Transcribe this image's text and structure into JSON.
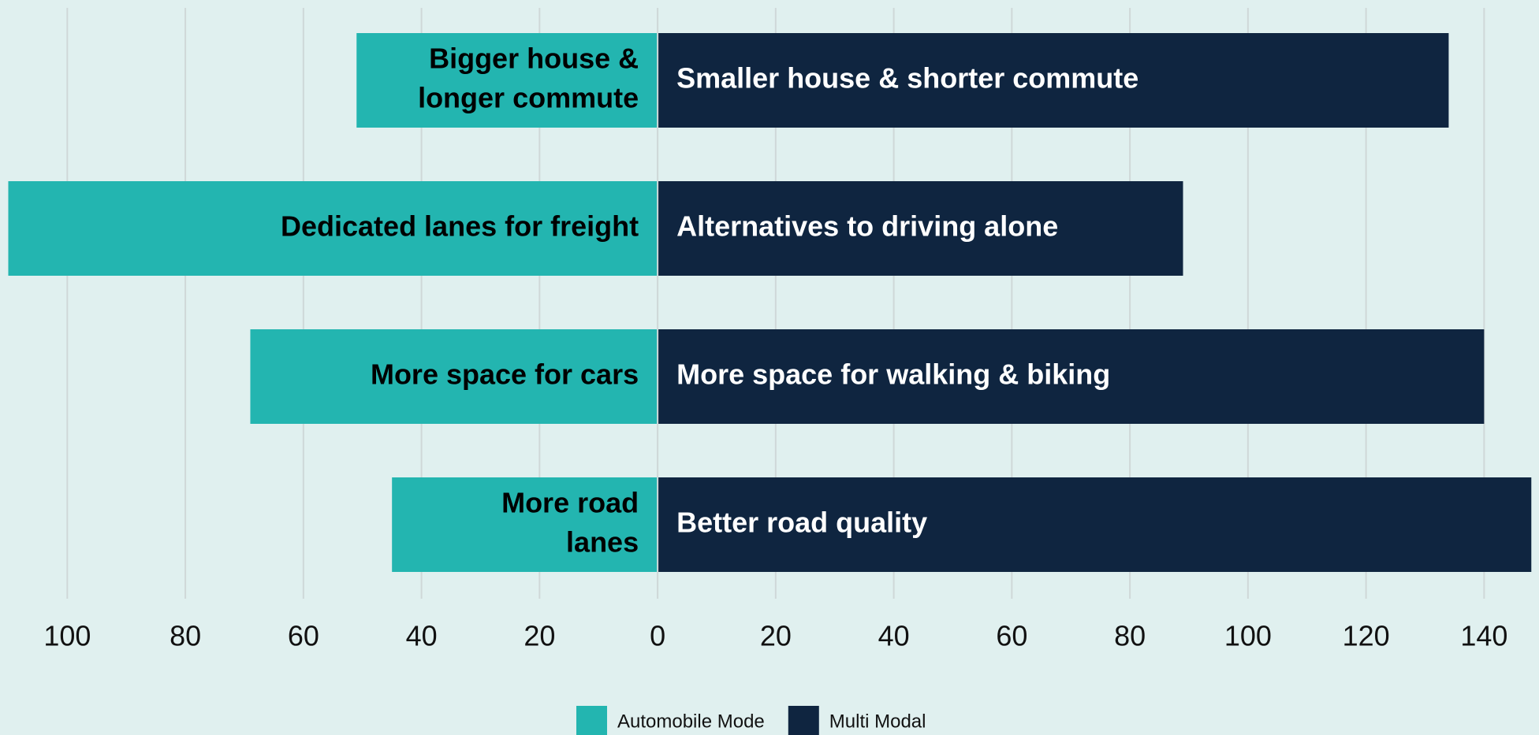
{
  "chart_data": {
    "type": "diverging_bar",
    "series": [
      {
        "name": "Automobile Mode",
        "color": "#23b5b0",
        "text_color": "#000000",
        "values": [
          -51,
          -110,
          -69,
          -45
        ],
        "labels": [
          [
            "Bigger house &",
            "longer commute"
          ],
          [
            "Dedicated lanes for freight"
          ],
          [
            "More space for cars"
          ],
          [
            "More road",
            "lanes"
          ]
        ]
      },
      {
        "name": "Multi Modal",
        "color": "#0f2540",
        "text_color": "#ffffff",
        "values": [
          134,
          89,
          140,
          148
        ],
        "labels": [
          [
            "Smaller house & shorter commute"
          ],
          [
            "Alternatives to driving alone"
          ],
          [
            "More space for walking & biking"
          ],
          [
            "Better road quality"
          ]
        ]
      }
    ],
    "xlim": [
      -111.4,
      149.3
    ],
    "xticks": [
      {
        "value": -100,
        "label": "100"
      },
      {
        "value": -80,
        "label": "80"
      },
      {
        "value": -60,
        "label": "60"
      },
      {
        "value": -40,
        "label": "40"
      },
      {
        "value": -20,
        "label": "20"
      },
      0,
      20,
      40,
      60,
      80,
      100,
      120,
      140
    ],
    "grid": true,
    "legend": "bottom"
  }
}
